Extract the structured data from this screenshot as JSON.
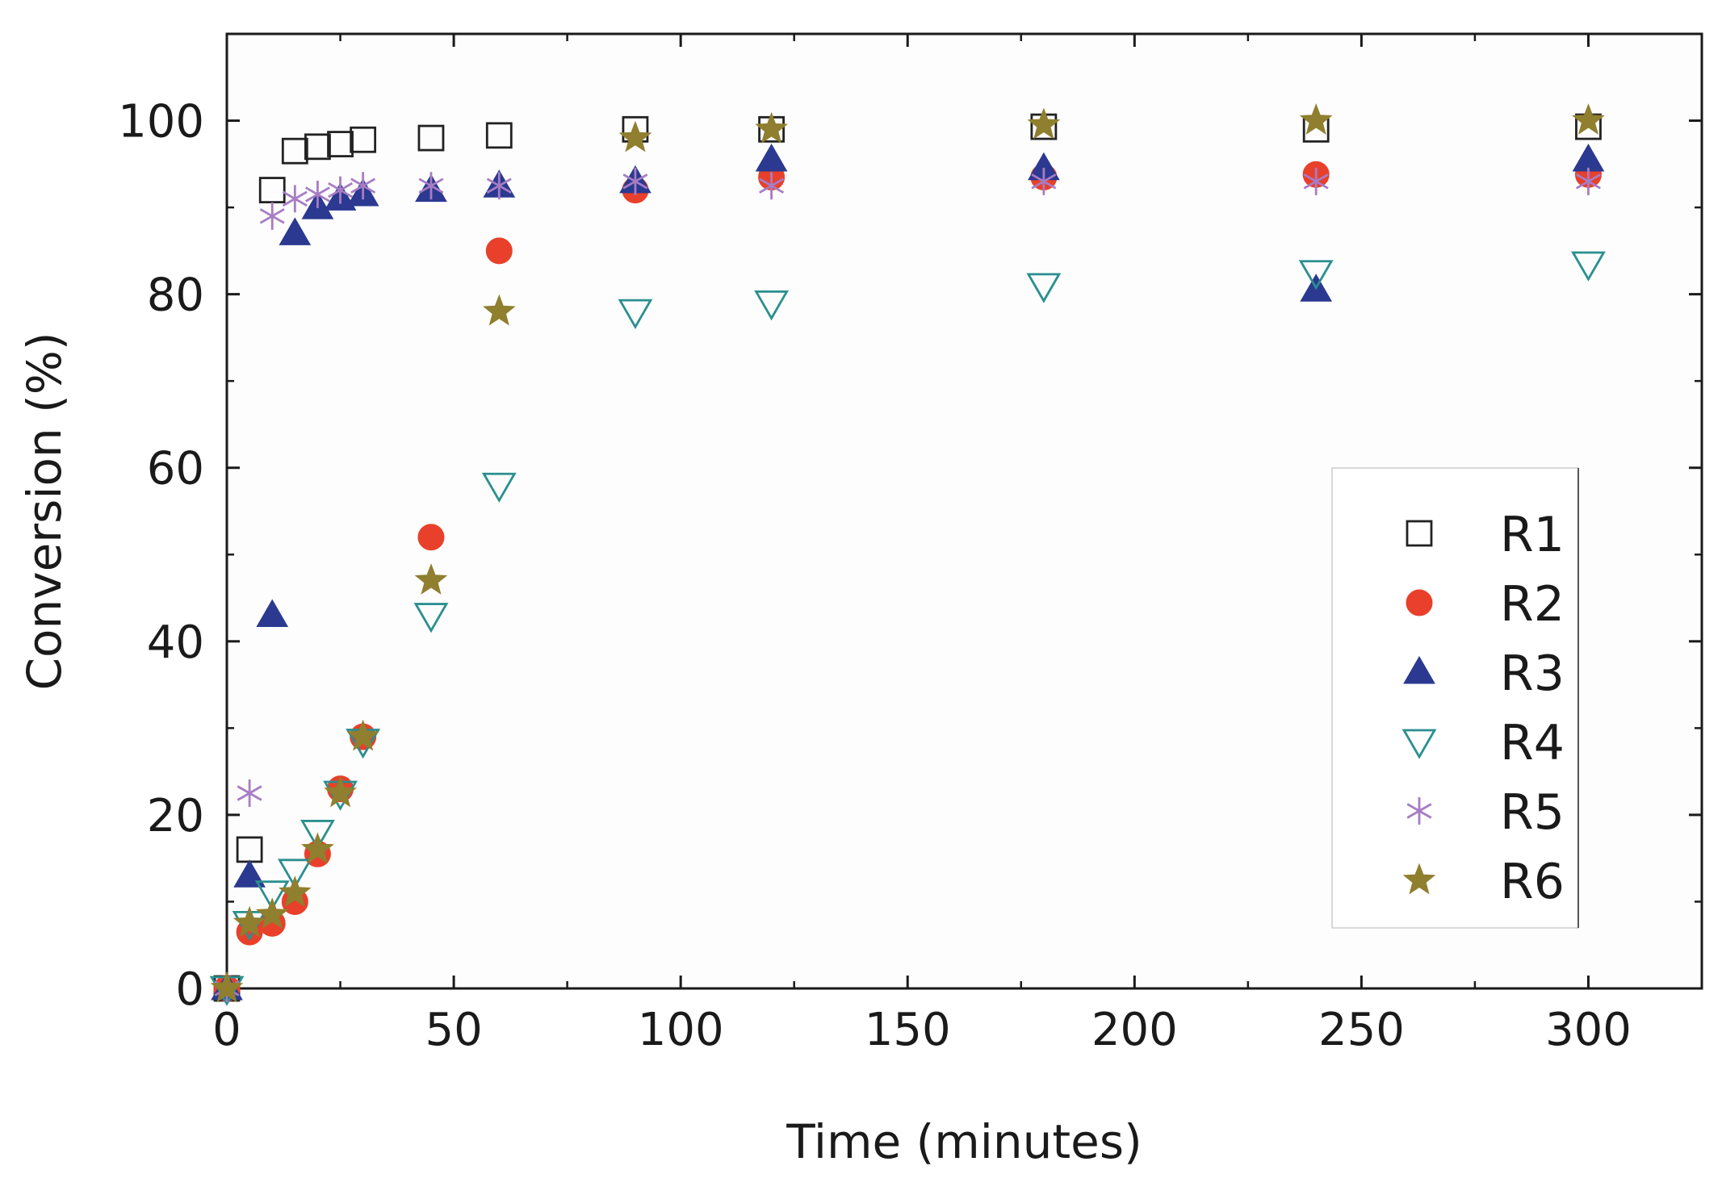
{
  "chart_data": {
    "type": "scatter",
    "title": "",
    "xlabel": "Time (minutes)",
    "ylabel": "Conversion (%)",
    "xlim": [
      0,
      325
    ],
    "ylim": [
      0,
      110
    ],
    "xticks": [
      0,
      50,
      100,
      150,
      200,
      250,
      300
    ],
    "yticks": [
      0,
      20,
      40,
      60,
      80,
      100
    ],
    "x_tick_labels": [
      "0",
      "50",
      "100",
      "150",
      "200",
      "250",
      "300"
    ],
    "y_tick_labels": [
      "0",
      "20",
      "40",
      "60",
      "80",
      "100"
    ],
    "grid": false,
    "legend_position": "right",
    "series": [
      {
        "name": "R1",
        "marker": "open-square",
        "color": "#222222",
        "points": [
          [
            0,
            0
          ],
          [
            5,
            16
          ],
          [
            10,
            92
          ],
          [
            15,
            96.5
          ],
          [
            20,
            97
          ],
          [
            25,
            97.3
          ],
          [
            30,
            97.8
          ],
          [
            45,
            98
          ],
          [
            60,
            98.3
          ],
          [
            90,
            99
          ],
          [
            120,
            99
          ],
          [
            180,
            99.3
          ],
          [
            240,
            99
          ],
          [
            300,
            99.3
          ]
        ]
      },
      {
        "name": "R2",
        "marker": "filled-circle",
        "color": "#e8402a",
        "points": [
          [
            0,
            0
          ],
          [
            5,
            6.5
          ],
          [
            10,
            7.5
          ],
          [
            15,
            10
          ],
          [
            20,
            15.5
          ],
          [
            25,
            23
          ],
          [
            30,
            29
          ],
          [
            45,
            52
          ],
          [
            60,
            85
          ],
          [
            90,
            92
          ],
          [
            120,
            93.5
          ],
          [
            180,
            93.5
          ],
          [
            240,
            93.8
          ],
          [
            300,
            93.8
          ]
        ]
      },
      {
        "name": "R3",
        "marker": "filled-triangle-up",
        "color": "#2b3990",
        "points": [
          [
            0,
            0
          ],
          [
            5,
            13
          ],
          [
            10,
            43
          ],
          [
            15,
            87
          ],
          [
            20,
            90
          ],
          [
            25,
            91
          ],
          [
            30,
            91.5
          ],
          [
            45,
            92
          ],
          [
            60,
            92.5
          ],
          [
            90,
            93
          ],
          [
            120,
            95.5
          ],
          [
            180,
            94.5
          ],
          [
            240,
            80.5
          ],
          [
            300,
            95.5
          ]
        ]
      },
      {
        "name": "R4",
        "marker": "open-triangle-down",
        "color": "#2a8f8f",
        "points": [
          [
            0,
            0
          ],
          [
            5,
            7.5
          ],
          [
            10,
            11
          ],
          [
            15,
            13.5
          ],
          [
            20,
            18
          ],
          [
            25,
            22.5
          ],
          [
            30,
            28.5
          ],
          [
            45,
            43
          ],
          [
            60,
            58
          ],
          [
            90,
            78
          ],
          [
            120,
            79
          ],
          [
            180,
            81
          ],
          [
            240,
            82.5
          ],
          [
            300,
            83.5
          ]
        ]
      },
      {
        "name": "R5",
        "marker": "asterisk",
        "color": "#a77cc4",
        "points": [
          [
            0,
            0
          ],
          [
            5,
            22.5
          ],
          [
            10,
            89
          ],
          [
            15,
            91
          ],
          [
            20,
            91.5
          ],
          [
            25,
            92
          ],
          [
            30,
            92.5
          ],
          [
            45,
            92.5
          ],
          [
            60,
            92.5
          ],
          [
            90,
            93
          ],
          [
            120,
            92.5
          ],
          [
            180,
            93
          ],
          [
            240,
            93
          ],
          [
            300,
            93
          ]
        ]
      },
      {
        "name": "R6",
        "marker": "filled-star",
        "color": "#8f7f2e",
        "points": [
          [
            0,
            0
          ],
          [
            5,
            7.5
          ],
          [
            10,
            8.5
          ],
          [
            15,
            11
          ],
          [
            20,
            16
          ],
          [
            25,
            22.5
          ],
          [
            30,
            29
          ],
          [
            45,
            47
          ],
          [
            60,
            78
          ],
          [
            90,
            98
          ],
          [
            120,
            99
          ],
          [
            180,
            99.5
          ],
          [
            240,
            100
          ],
          [
            300,
            100
          ]
        ]
      }
    ]
  }
}
